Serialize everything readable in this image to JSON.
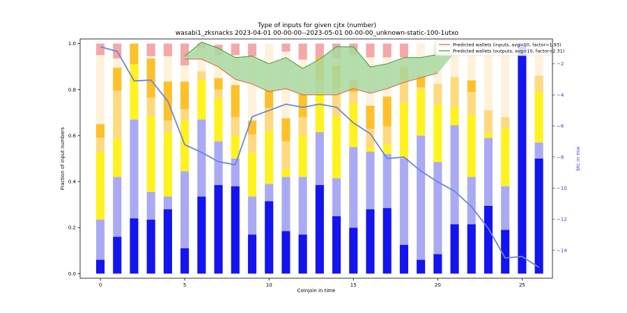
{
  "chart_data": {
    "type": "bar",
    "title": "Type of inputs for given cjtx (number)",
    "subtitle": "wasabi1_zksnacks 2023-04-01 00-00-00--2023-05-01 00-00-00_unknown-static-100-1utxo",
    "xlabel": "Coinjoin in time",
    "ylabel": "Fraction of input numbers",
    "ylabel_right": "btc in mix",
    "xlim": [
      -1.2,
      26.8
    ],
    "ylim": [
      -0.02,
      1.02
    ],
    "ylim_right": [
      -15.8,
      -0.4
    ],
    "x_ticks": [
      0,
      5,
      10,
      15,
      20,
      25
    ],
    "y_ticks": [
      0.0,
      0.2,
      0.4,
      0.6,
      0.8,
      1.0
    ],
    "y_ticks_right": [
      -2,
      -4,
      -6,
      -8,
      -10,
      -12,
      -14
    ],
    "stack_colors": [
      "#1414ee",
      "#aaaaf4",
      "#fff21e",
      "#ffd980",
      "#ffc02a",
      "#fff2dc",
      "#f5a8a8"
    ],
    "x": [
      0,
      1,
      2,
      3,
      4,
      5,
      6,
      7,
      8,
      9,
      10,
      11,
      12,
      13,
      14,
      15,
      16,
      17,
      18,
      19,
      20,
      21,
      22,
      23,
      24,
      25,
      26
    ],
    "stacks": [
      [
        0.06,
        0.16,
        0.24,
        0.235,
        0.28,
        0.11,
        0.335,
        0.385,
        0.38,
        0.17,
        0.315,
        0.185,
        0.17,
        0.385,
        0.25,
        0.2,
        0.28,
        0.285,
        0.125,
        0.06,
        0.085,
        0.215,
        0.215,
        0.295,
        0.19,
        1.0,
        0.5
      ],
      [
        0.175,
        0.26,
        0.43,
        0.12,
        0.055,
        0.335,
        0.335,
        0.19,
        0.12,
        0.165,
        0.075,
        0.235,
        0.25,
        0.23,
        0.165,
        0.35,
        0.25,
        0.235,
        0.375,
        0.54,
        0.4,
        0.43,
        0.205,
        0.295,
        0.19,
        0.0,
        0.07
      ],
      [
        0.295,
        0.165,
        0.24,
        0.33,
        0.28,
        0.22,
        0.17,
        0.185,
        0.1,
        0.19,
        0.23,
        0.035,
        0.18,
        0.175,
        0.27,
        0.19,
        0.02,
        0.04,
        0.24,
        0.2,
        0.25,
        0.08,
        0.27,
        0.02,
        0.25,
        0.0,
        0.22
      ],
      [
        0.06,
        0.21,
        0.0,
        0.08,
        0.05,
        0.05,
        0.04,
        0.04,
        0.08,
        0.08,
        0.1,
        0.12,
        0.08,
        0.05,
        0.12,
        0.05,
        0.08,
        0.08,
        0.1,
        0.01,
        0.09,
        0.13,
        0.1,
        0.1,
        0.05,
        0.0,
        0.07
      ],
      [
        0.06,
        0.1,
        0.09,
        0.17,
        0.17,
        0.12,
        0.0,
        0.05,
        0.14,
        0.06,
        0.08,
        0.1,
        0.1,
        0.1,
        0.1,
        0.05,
        0.1,
        0.13,
        0.06,
        0.05,
        0.0,
        0.0,
        0.05,
        0.0,
        0.0,
        0.0,
        0.0
      ],
      [
        0.3,
        0.04,
        0.0,
        0.01,
        0.11,
        0.07,
        0.1,
        0.1,
        0.13,
        0.28,
        0.2,
        0.29,
        0.15,
        0.0,
        0.03,
        0.11,
        0.21,
        0.17,
        0.04,
        0.14,
        0.175,
        0.145,
        0.16,
        0.29,
        0.32,
        0.0,
        0.14
      ],
      [
        0.05,
        0.065,
        0.0,
        0.055,
        0.055,
        0.095,
        0.02,
        0.045,
        0.05,
        0.055,
        0.0,
        0.035,
        0.07,
        0.06,
        0.065,
        0.05,
        0.06,
        0.06,
        0.06,
        0.0,
        0.0,
        0.0,
        0.0,
        0.0,
        0.0,
        0.0,
        0.0
      ]
    ],
    "wallets_inputs": {
      "name": "Predicted wallets (inputs, avg=10, factor=1.93)",
      "color": "#e06040",
      "x": [
        5,
        6,
        7,
        8,
        9,
        10,
        11,
        12,
        13,
        14,
        15,
        16,
        17,
        18,
        19,
        20
      ],
      "y": [
        -1.7,
        -1.7,
        -2.2,
        -3.0,
        -3.3,
        -3.8,
        -3.6,
        -4.0,
        -4.0,
        -4.0,
        -3.6,
        -3.9,
        -3.6,
        -3.2,
        -2.9,
        -2.6
      ]
    },
    "wallets_outputs": {
      "name": "Predicted wallets (outputs, avg=10, factor=2.31)",
      "color": "#3c9a3c",
      "fill": "#a8d8a0",
      "x": [
        5,
        6,
        7,
        8,
        9,
        10,
        11,
        12,
        13,
        14,
        15,
        16,
        17,
        18,
        19,
        20,
        21
      ],
      "y": [
        -1.5,
        -0.6,
        -1.0,
        -1.6,
        -1.5,
        -2.0,
        -1.6,
        -2.3,
        -1.7,
        -0.9,
        -0.9,
        -2.2,
        -2.0,
        -1.6,
        -1.6,
        -1.4,
        -1.3
      ]
    },
    "btc_in_mix": {
      "name": "btc in mix",
      "color": "#6b84e0",
      "x": [
        0,
        1,
        2,
        3,
        4,
        5,
        6,
        7,
        8,
        9,
        10,
        11,
        12,
        13,
        14,
        15,
        16,
        17,
        18,
        19,
        20,
        21,
        22,
        23,
        24,
        25,
        26
      ],
      "y": [
        -0.9,
        -1.2,
        -3.1,
        -3.05,
        -4.4,
        -7.2,
        -7.7,
        -8.3,
        -8.5,
        -5.4,
        -5.0,
        -4.6,
        -4.8,
        -4.6,
        -4.8,
        -5.8,
        -6.5,
        -8.1,
        -8.0,
        -8.9,
        -9.6,
        -10.2,
        -11.2,
        -12.6,
        -14.5,
        -14.4,
        -15.1
      ]
    }
  }
}
